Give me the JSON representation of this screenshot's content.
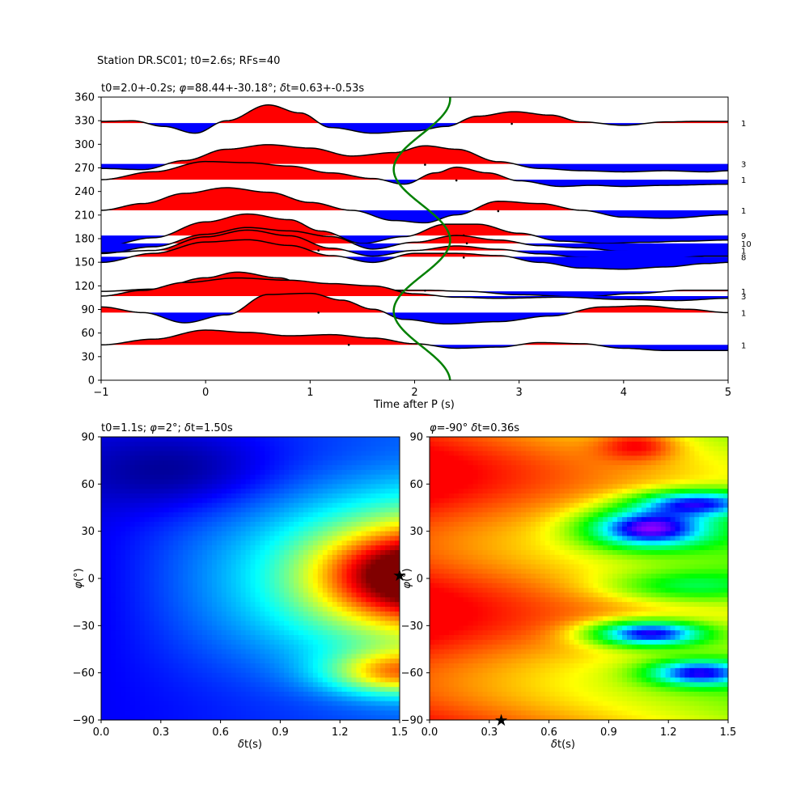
{
  "suptitle": "Station DR.SC01; t0=2.6s; RFs=40",
  "chart_data": [
    {
      "type": "line",
      "title": "t0=2.0+-0.2s; φ=88.44+-30.18°; δt=0.63+-0.53s",
      "xlabel": "Time after P (s)",
      "ylabel": "",
      "xlim": [
        -1,
        5
      ],
      "ylim": [
        0,
        360
      ],
      "xticks": [
        "−1",
        "0",
        "1",
        "2",
        "3",
        "4",
        "5"
      ],
      "yticks": [
        "0",
        "30",
        "60",
        "90",
        "120",
        "150",
        "180",
        "210",
        "240",
        "270",
        "300",
        "330",
        "360"
      ],
      "fill_positive_color": "#ff0000",
      "fill_negative_color": "#0000ff",
      "fit_curve_color": "#008000",
      "traces": [
        {
          "baz": 327,
          "count": "1",
          "pick": [
            2.93,
            326
          ],
          "points": [
            [
              -1,
              0.15
            ],
            [
              -0.7,
              0.2
            ],
            [
              -0.4,
              -0.3
            ],
            [
              -0.1,
              -0.9
            ],
            [
              0.2,
              0.2
            ],
            [
              0.6,
              1.6
            ],
            [
              0.9,
              0.9
            ],
            [
              1.2,
              -0.4
            ],
            [
              1.6,
              -0.9
            ],
            [
              2.0,
              -0.7
            ],
            [
              2.3,
              -0.3
            ],
            [
              2.6,
              0.6
            ],
            [
              2.95,
              1.0
            ],
            [
              3.3,
              0.7
            ],
            [
              3.6,
              0.1
            ],
            [
              4.0,
              -0.2
            ],
            [
              4.4,
              0.1
            ],
            [
              4.7,
              0.15
            ],
            [
              5,
              0.15
            ]
          ]
        },
        {
          "baz": 275,
          "count": "3",
          "pick": [
            2.1,
            274
          ],
          "points": [
            [
              -1,
              -0.4
            ],
            [
              -0.6,
              -0.5
            ],
            [
              -0.2,
              0.3
            ],
            [
              0.2,
              1.3
            ],
            [
              0.6,
              1.7
            ],
            [
              1.0,
              1.4
            ],
            [
              1.4,
              0.7
            ],
            [
              1.8,
              1.0
            ],
            [
              2.1,
              1.6
            ],
            [
              2.4,
              1.3
            ],
            [
              2.8,
              0.2
            ],
            [
              3.2,
              -0.4
            ],
            [
              3.6,
              -0.6
            ],
            [
              4.0,
              -0.7
            ],
            [
              4.4,
              -0.6
            ],
            [
              4.8,
              -0.7
            ],
            [
              5,
              -0.6
            ]
          ]
        },
        {
          "baz": 255,
          "count": "1",
          "pick": [
            2.4,
            254
          ],
          "points": [
            [
              -1,
              0.0
            ],
            [
              -0.5,
              0.7
            ],
            [
              0.0,
              1.6
            ],
            [
              0.4,
              1.5
            ],
            [
              0.8,
              1.2
            ],
            [
              1.2,
              0.6
            ],
            [
              1.6,
              0.1
            ],
            [
              1.9,
              -0.4
            ],
            [
              2.2,
              0.6
            ],
            [
              2.4,
              1.1
            ],
            [
              2.7,
              0.6
            ],
            [
              3.0,
              -0.1
            ],
            [
              3.4,
              -0.6
            ],
            [
              3.7,
              -0.5
            ],
            [
              4.0,
              -0.6
            ],
            [
              4.4,
              -0.5
            ],
            [
              5,
              -0.4
            ]
          ]
        },
        {
          "baz": 216,
          "count": "1",
          "pick": [
            2.8,
            215
          ],
          "points": [
            [
              -1,
              0.0
            ],
            [
              -0.6,
              0.6
            ],
            [
              -0.2,
              1.5
            ],
            [
              0.2,
              2.0
            ],
            [
              0.6,
              1.6
            ],
            [
              1.0,
              0.7
            ],
            [
              1.4,
              0.0
            ],
            [
              1.8,
              -0.9
            ],
            [
              2.1,
              -1.1
            ],
            [
              2.4,
              -0.4
            ],
            [
              2.8,
              0.8
            ],
            [
              3.2,
              0.6
            ],
            [
              3.6,
              0.0
            ],
            [
              4.0,
              -0.6
            ],
            [
              4.4,
              -0.7
            ],
            [
              5,
              -0.4
            ]
          ]
        },
        {
          "baz": 184,
          "count": "9",
          "pick": [
            2.47,
            184
          ],
          "points": [
            [
              -1,
              -1.0
            ],
            [
              -0.5,
              -0.2
            ],
            [
              0.0,
              1.2
            ],
            [
              0.4,
              1.9
            ],
            [
              0.8,
              1.4
            ],
            [
              1.1,
              0.4
            ],
            [
              1.5,
              -0.7
            ],
            [
              1.9,
              -0.1
            ],
            [
              2.3,
              1.0
            ],
            [
              2.6,
              1.0
            ],
            [
              3.0,
              0.2
            ],
            [
              3.4,
              -0.5
            ],
            [
              3.8,
              -0.7
            ],
            [
              4.2,
              -0.6
            ],
            [
              4.6,
              -0.5
            ],
            [
              5,
              -0.4
            ]
          ]
        },
        {
          "baz": 174,
          "count": "10",
          "pick": [
            2.5,
            174
          ],
          "points": [
            [
              -1,
              -0.9
            ],
            [
              -0.5,
              -0.3
            ],
            [
              0.0,
              0.8
            ],
            [
              0.4,
              1.4
            ],
            [
              0.8,
              1.1
            ],
            [
              1.2,
              0.6
            ],
            [
              1.6,
              -0.5
            ],
            [
              2.0,
              0.1
            ],
            [
              2.4,
              0.7
            ],
            [
              2.8,
              0.3
            ],
            [
              3.2,
              -0.2
            ],
            [
              3.6,
              -0.4
            ],
            [
              4.0,
              -0.7
            ],
            [
              4.4,
              -0.9
            ],
            [
              4.8,
              -0.8
            ],
            [
              5,
              -0.7
            ]
          ]
        },
        {
          "baz": 165,
          "count": "1",
          "pick": [
            1.08,
            165
          ],
          "points": [
            [
              -1,
              -0.2
            ],
            [
              -0.5,
              0.0
            ],
            [
              0.0,
              1.2
            ],
            [
              0.4,
              1.8
            ],
            [
              0.8,
              1.3
            ],
            [
              1.2,
              0.2
            ],
            [
              1.6,
              -0.5
            ],
            [
              2.0,
              0.0
            ],
            [
              2.4,
              0.4
            ],
            [
              2.8,
              0.1
            ],
            [
              3.2,
              -0.3
            ],
            [
              3.6,
              -0.6
            ],
            [
              4.0,
              -0.8
            ],
            [
              4.4,
              -0.7
            ],
            [
              4.8,
              -0.5
            ],
            [
              5,
              -0.5
            ]
          ]
        },
        {
          "baz": 157,
          "count": "8",
          "pick": [
            2.47,
            156
          ],
          "points": [
            [
              -1,
              -0.5
            ],
            [
              -0.5,
              0.3
            ],
            [
              0.0,
              1.3
            ],
            [
              0.4,
              1.5
            ],
            [
              0.8,
              1.0
            ],
            [
              1.2,
              0.1
            ],
            [
              1.6,
              -0.5
            ],
            [
              2.0,
              0.3
            ],
            [
              2.4,
              0.3
            ],
            [
              2.8,
              0.1
            ],
            [
              3.2,
              -0.5
            ],
            [
              3.6,
              -1.0
            ],
            [
              4.0,
              -1.1
            ],
            [
              4.4,
              -0.9
            ],
            [
              4.8,
              -0.6
            ],
            [
              5,
              -0.5
            ]
          ]
        },
        {
          "baz": 113,
          "count": "1",
          "pick": [
            2.1,
            114
          ],
          "points": [
            [
              -1,
              0.0
            ],
            [
              -0.5,
              0.2
            ],
            [
              0.0,
              1.2
            ],
            [
              0.3,
              1.7
            ],
            [
              0.7,
              1.2
            ],
            [
              1.0,
              0.4
            ],
            [
              1.4,
              -0.2
            ],
            [
              1.8,
              0.1
            ],
            [
              2.1,
              0.1
            ],
            [
              2.5,
              0.0
            ],
            [
              3.0,
              -0.3
            ],
            [
              3.6,
              -0.5
            ],
            [
              4.1,
              -0.2
            ],
            [
              4.6,
              0.1
            ],
            [
              5,
              0.1
            ]
          ]
        },
        {
          "baz": 107,
          "count": "3",
          "pick": [
            1.07,
            105
          ],
          "points": [
            [
              -1,
              0.0
            ],
            [
              -0.6,
              0.5
            ],
            [
              -0.2,
              1.2
            ],
            [
              0.3,
              1.6
            ],
            [
              0.8,
              1.4
            ],
            [
              1.2,
              1.1
            ],
            [
              1.6,
              0.9
            ],
            [
              2.0,
              0.2
            ],
            [
              2.4,
              -0.1
            ],
            [
              2.8,
              -0.2
            ],
            [
              3.4,
              -0.1
            ],
            [
              4.0,
              -0.3
            ],
            [
              4.5,
              -0.4
            ],
            [
              5,
              -0.2
            ]
          ]
        },
        {
          "baz": 86,
          "count": "1",
          "pick": [
            1.08,
            86
          ],
          "points": [
            [
              -1,
              0.5
            ],
            [
              -0.6,
              0.0
            ],
            [
              -0.2,
              -0.9
            ],
            [
              0.2,
              -0.2
            ],
            [
              0.6,
              1.6
            ],
            [
              1.0,
              1.7
            ],
            [
              1.3,
              1.1
            ],
            [
              1.6,
              0.3
            ],
            [
              1.9,
              -0.6
            ],
            [
              2.3,
              -1.0
            ],
            [
              2.8,
              -0.8
            ],
            [
              3.3,
              -0.3
            ],
            [
              3.8,
              0.5
            ],
            [
              4.2,
              0.6
            ],
            [
              4.6,
              0.3
            ],
            [
              5,
              0.0
            ]
          ]
        },
        {
          "baz": 45,
          "count": "1",
          "pick": [
            1.37,
            45
          ],
          "points": [
            [
              -1,
              0.0
            ],
            [
              -0.5,
              0.5
            ],
            [
              0.0,
              1.3
            ],
            [
              0.4,
              1.1
            ],
            [
              0.8,
              0.8
            ],
            [
              1.2,
              0.9
            ],
            [
              1.6,
              0.6
            ],
            [
              2.0,
              0.1
            ],
            [
              2.4,
              -0.3
            ],
            [
              2.8,
              -0.2
            ],
            [
              3.2,
              0.2
            ],
            [
              3.6,
              0.1
            ],
            [
              4.0,
              -0.3
            ],
            [
              4.4,
              -0.5
            ],
            [
              5,
              -0.5
            ]
          ]
        }
      ],
      "fit_curve": {
        "note_free": true,
        "center": 2.07,
        "amplitude": 0.27,
        "period_deg": 180,
        "phase_deg": 88
      }
    },
    {
      "type": "heatmap",
      "title": "t0=1.1s; φ=2°; δt=1.50s",
      "xlabel": "δt(s)",
      "ylabel": "φ(°)",
      "xlim": [
        0,
        1.5
      ],
      "ylim": [
        -90,
        90
      ],
      "xticks": [
        "0.0",
        "0.3",
        "0.6",
        "0.9",
        "1.2",
        "1.5"
      ],
      "yticks": [
        "−90",
        "−60",
        "−30",
        "0",
        "30",
        "60",
        "90"
      ],
      "colormap": "jet",
      "marker": {
        "x": 1.5,
        "y": 2,
        "symbol": "★"
      }
    },
    {
      "type": "heatmap",
      "title": "φ=-90° δt=0.36s",
      "xlabel": "δt(s)",
      "ylabel": "φ(°)",
      "xlim": [
        0,
        1.5
      ],
      "ylim": [
        -90,
        90
      ],
      "xticks": [
        "0.0",
        "0.3",
        "0.6",
        "0.9",
        "1.2",
        "1.5"
      ],
      "yticks": [
        "−90",
        "−60",
        "−30",
        "0",
        "30",
        "60",
        "90"
      ],
      "colormap": "hsv",
      "marker": {
        "x": 0.36,
        "y": -90,
        "symbol": "★"
      }
    }
  ]
}
